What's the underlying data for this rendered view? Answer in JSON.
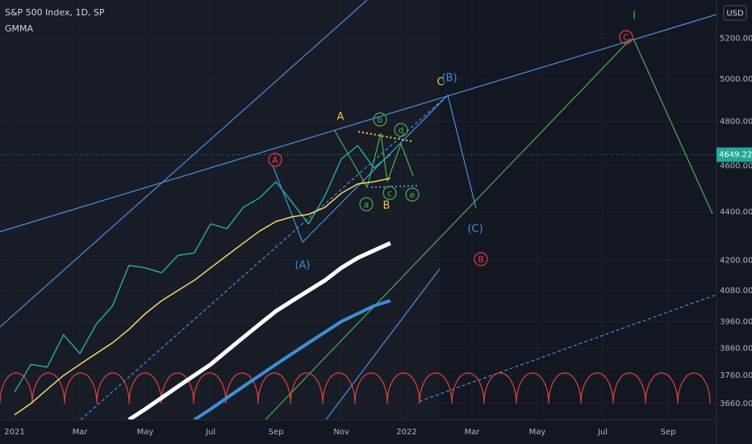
{
  "chart_data": {
    "type": "line",
    "title": "S&P 500 Index, 1D, SP",
    "subtitle": "GMMA",
    "currency": "USD",
    "log_scale": true,
    "ylim": [
      3603,
      5395
    ],
    "yticks": [
      {
        "value": 3660,
        "label": "3660.00"
      },
      {
        "value": 3760,
        "label": "3760.00"
      },
      {
        "value": 3860,
        "label": "3860.00"
      },
      {
        "value": 3960,
        "label": "3960.00"
      },
      {
        "value": 4080,
        "label": "4080.00"
      },
      {
        "value": 4200,
        "label": "4200.00"
      },
      {
        "value": 4400,
        "label": "4400.00"
      },
      {
        "value": 4600,
        "label": "4600.00"
      },
      {
        "value": 4800,
        "label": "4800.00"
      },
      {
        "value": 5000,
        "label": "5000.00"
      },
      {
        "value": 5200,
        "label": "5200.00"
      }
    ],
    "categories": [
      "2021",
      null,
      null,
      null,
      "Mar",
      null,
      null,
      null,
      "May",
      null,
      null,
      null,
      "Jul",
      null,
      null,
      null,
      "Sep",
      null,
      null,
      null,
      "Nov",
      null,
      null,
      null,
      "2022",
      null,
      null,
      null,
      "Mar",
      null,
      null,
      null,
      "May",
      null,
      null,
      null,
      "Jul",
      null,
      null,
      null,
      "Sep",
      null,
      null,
      null
    ],
    "series": [
      {
        "color": "#26a69a",
        "values": [
          3700,
          3800,
          3790,
          3910,
          3840,
          3950,
          4020,
          4180,
          4170,
          4150,
          4220,
          4230,
          4350,
          4330,
          4420,
          4460,
          4530,
          4440,
          4350,
          4470,
          4630,
          4690,
          4590,
          4649.22,
          null,
          null,
          null,
          null,
          null,
          null,
          null,
          null,
          null,
          null,
          null,
          null,
          null,
          null,
          null,
          null,
          null,
          null,
          null,
          null
        ]
      },
      {
        "color": "#f5d76e",
        "values": [
          3620,
          3660,
          3710,
          3760,
          3800,
          3840,
          3880,
          3930,
          3990,
          4040,
          4080,
          4120,
          4170,
          4220,
          4270,
          4320,
          4360,
          4380,
          4390,
          4420,
          4480,
          4520,
          4530,
          4545,
          null,
          null,
          null,
          null,
          null,
          null,
          null,
          null,
          null,
          null,
          null,
          null,
          null,
          null,
          null,
          null,
          null,
          null,
          null,
          null
        ]
      },
      {
        "color": "#ffffff",
        "values": [
          null,
          null,
          null,
          null,
          null,
          null,
          null,
          3603,
          3640,
          3680,
          3720,
          3760,
          3800,
          3850,
          3900,
          3950,
          4000,
          4040,
          4080,
          4120,
          4170,
          4210,
          4240,
          4270,
          null,
          null,
          null,
          null,
          null,
          null,
          null,
          null,
          null,
          null,
          null,
          null,
          null,
          null,
          null,
          null,
          null,
          null,
          null,
          null
        ]
      },
      {
        "color": "#3d8fd6",
        "values": [
          null,
          null,
          null,
          null,
          null,
          null,
          null,
          null,
          null,
          null,
          null,
          3603,
          3640,
          3680,
          3720,
          3760,
          3800,
          3840,
          3880,
          3920,
          3960,
          3990,
          4020,
          4040,
          null,
          null,
          null,
          null,
          null,
          null,
          null,
          null,
          null,
          null,
          null,
          null,
          null,
          null,
          null,
          null,
          null,
          null,
          null,
          null
        ]
      }
    ],
    "last_price": 4649.22,
    "annotations": [
      {
        "text": "A",
        "color": "#f23645",
        "circled": true
      },
      {
        "text": "A",
        "color": "#f5c542",
        "circled": false
      },
      {
        "text": "b",
        "color": "#4caf50",
        "circled": true
      },
      {
        "text": "d",
        "color": "#4caf50",
        "circled": true
      },
      {
        "text": "a",
        "color": "#4caf50",
        "circled": true
      },
      {
        "text": "c",
        "color": "#4caf50",
        "circled": true
      },
      {
        "text": "e",
        "color": "#4caf50",
        "circled": true
      },
      {
        "text": "B",
        "color": "#f5c542",
        "circled": false
      },
      {
        "text": "(A)",
        "color": "#3d8fd6",
        "circled": false
      },
      {
        "text": "C",
        "color": "#f5c542",
        "circled": false
      },
      {
        "text": "(B)",
        "color": "#3d8fd6",
        "circled": false
      },
      {
        "text": "(C)",
        "color": "#3d8fd6",
        "circled": false
      },
      {
        "text": "B",
        "color": "#f23645",
        "circled": true
      },
      {
        "text": "C",
        "color": "#f23645",
        "circled": true
      },
      {
        "text": "I",
        "color": "#4caf50",
        "circled": false
      }
    ]
  }
}
